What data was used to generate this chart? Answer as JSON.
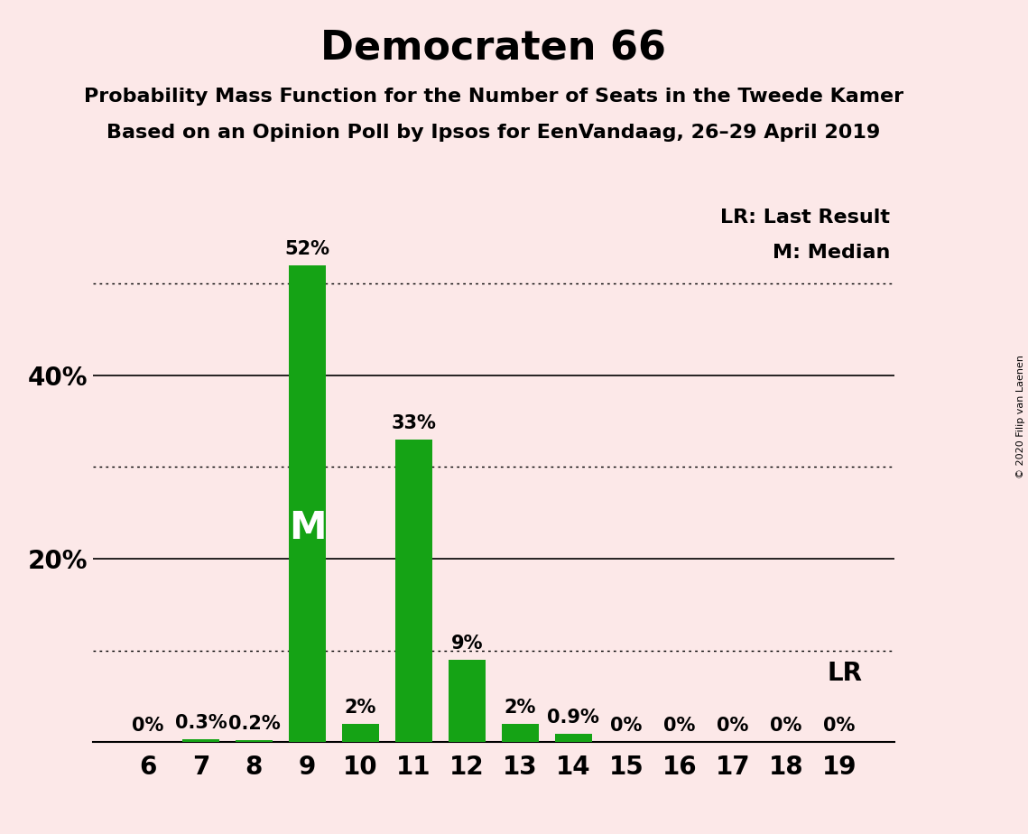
{
  "title": "Democraten 66",
  "subtitle1": "Probability Mass Function for the Number of Seats in the Tweede Kamer",
  "subtitle2": "Based on an Opinion Poll by Ipsos for EenVandaag, 26–29 April 2019",
  "copyright": "© 2020 Filip van Laenen",
  "categories": [
    6,
    7,
    8,
    9,
    10,
    11,
    12,
    13,
    14,
    15,
    16,
    17,
    18,
    19
  ],
  "values": [
    0.0,
    0.3,
    0.2,
    52.0,
    2.0,
    33.0,
    9.0,
    2.0,
    0.9,
    0.0,
    0.0,
    0.0,
    0.0,
    0.0
  ],
  "labels": [
    "0%",
    "0.3%",
    "0.2%",
    "52%",
    "2%",
    "33%",
    "9%",
    "2%",
    "0.9%",
    "0%",
    "0%",
    "0%",
    "0%",
    "0%"
  ],
  "bar_color": "#15a315",
  "background_color": "#fce8e8",
  "median_seat": 9,
  "lr_seat": 19,
  "lr_label": "LR",
  "median_label": "M",
  "legend_lr": "LR: Last Result",
  "legend_m": "M: Median",
  "ylim": [
    0,
    60
  ],
  "solid_lines": [
    20,
    40
  ],
  "dotted_lines": [
    10,
    30,
    50
  ],
  "title_fontsize": 32,
  "subtitle_fontsize": 16,
  "label_fontsize": 15,
  "tick_fontsize": 20,
  "legend_fontsize": 16,
  "axis_label_fontsize": 20
}
